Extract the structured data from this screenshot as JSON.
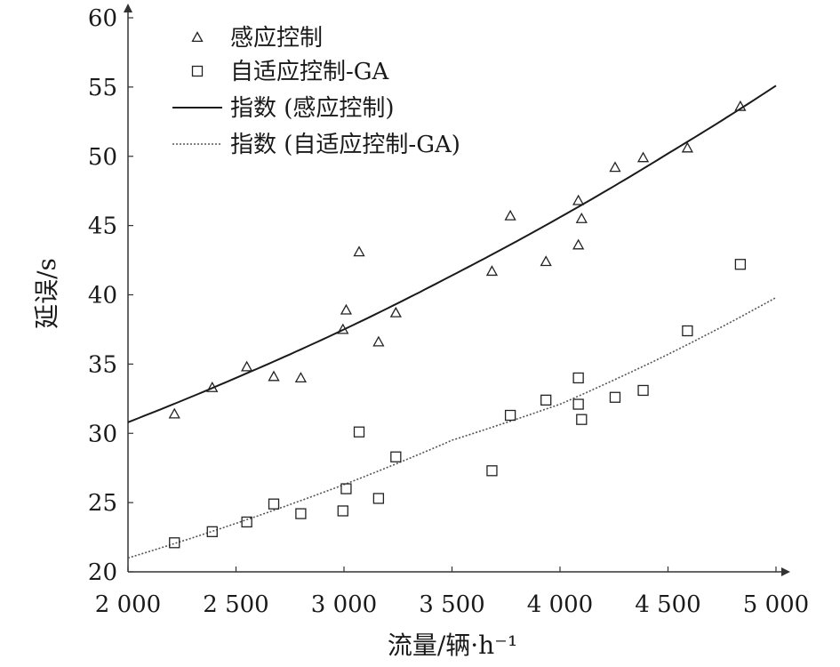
{
  "chart_data": {
    "type": "scatter",
    "title": "",
    "xlabel": "流量/辆·h⁻¹",
    "ylabel": "延误/s",
    "xlim": [
      2000,
      5000
    ],
    "ylim": [
      20,
      60
    ],
    "xticks": [
      2000,
      2500,
      3000,
      3500,
      4000,
      4500,
      5000
    ],
    "xtick_labels": [
      "2 000",
      "2 500",
      "3 000",
      "3 500",
      "4 000",
      "4 500",
      "5 000"
    ],
    "yticks": [
      20,
      25,
      30,
      35,
      40,
      45,
      50,
      55,
      60
    ],
    "ytick_labels": [
      "20",
      "25",
      "30",
      "35",
      "40",
      "45",
      "50",
      "55",
      "60"
    ],
    "grid": false,
    "legend_position": "top-left",
    "series": [
      {
        "name": "感应控制",
        "kind": "scatter",
        "marker": "triangle",
        "color": "#1a1a1a",
        "points": [
          [
            2215,
            31.4
          ],
          [
            2390,
            33.3
          ],
          [
            2550,
            34.8
          ],
          [
            2675,
            34.1
          ],
          [
            2800,
            34.0
          ],
          [
            2995,
            37.5
          ],
          [
            3010,
            38.9
          ],
          [
            3070,
            43.1
          ],
          [
            3160,
            36.6
          ],
          [
            3240,
            38.7
          ],
          [
            3685,
            41.7
          ],
          [
            3770,
            45.7
          ],
          [
            3935,
            42.4
          ],
          [
            4085,
            46.8
          ],
          [
            4085,
            43.6
          ],
          [
            4100,
            45.5
          ],
          [
            4255,
            49.2
          ],
          [
            4385,
            49.9
          ],
          [
            4590,
            50.6
          ],
          [
            4835,
            53.6
          ]
        ]
      },
      {
        "name": "自适应控制-GA",
        "kind": "scatter",
        "marker": "square",
        "color": "#1a1a1a",
        "points": [
          [
            2215,
            22.1
          ],
          [
            2390,
            22.9
          ],
          [
            2550,
            23.6
          ],
          [
            2675,
            24.9
          ],
          [
            2800,
            24.2
          ],
          [
            2995,
            24.4
          ],
          [
            3010,
            26.0
          ],
          [
            3070,
            30.1
          ],
          [
            3160,
            25.3
          ],
          [
            3240,
            28.3
          ],
          [
            3685,
            27.3
          ],
          [
            3770,
            31.3
          ],
          [
            3935,
            32.4
          ],
          [
            4085,
            34.0
          ],
          [
            4085,
            32.1
          ],
          [
            4100,
            31.0
          ],
          [
            4255,
            32.6
          ],
          [
            4385,
            33.1
          ],
          [
            4590,
            37.4
          ],
          [
            4835,
            42.2
          ]
        ]
      },
      {
        "name": "指数 (感应控制)",
        "kind": "line",
        "style": "solid",
        "color": "#1a1a1a",
        "points": [
          [
            2000,
            30.8
          ],
          [
            2500,
            34.0
          ],
          [
            3000,
            37.5
          ],
          [
            3500,
            41.4
          ],
          [
            4000,
            45.6
          ],
          [
            4500,
            50.2
          ],
          [
            5000,
            55.1
          ]
        ]
      },
      {
        "name": "指数 (自适应控制-GA)",
        "kind": "line",
        "style": "dotted",
        "color": "#555555",
        "points": [
          [
            2000,
            21.0
          ],
          [
            2500,
            23.5
          ],
          [
            3000,
            26.3
          ],
          [
            3500,
            29.5
          ],
          [
            4000,
            32.1
          ],
          [
            4500,
            35.7
          ],
          [
            5000,
            39.8
          ]
        ]
      }
    ]
  }
}
